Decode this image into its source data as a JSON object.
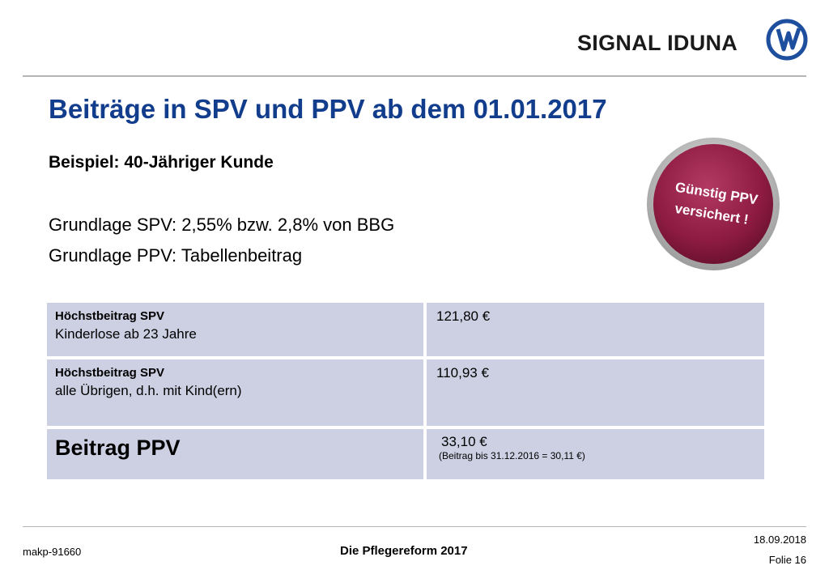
{
  "header": {
    "logo_text": "SIGNAL IDUNA",
    "logo_icon": "signal-iduna-mark"
  },
  "slide": {
    "title": "Beiträge in SPV und PPV ab dem 01.01.2017",
    "subtitle": "Beispiel: 40-Jähriger Kunde",
    "basis_spv": "Grundlage SPV: 2,55% bzw. 2,8% von BBG",
    "basis_ppv": "Grundlage PPV: Tabellenbeitrag"
  },
  "badge": {
    "line1": "Günstig PPV",
    "line2": "versichert !",
    "color": "#9a1f4a"
  },
  "table": {
    "rows": [
      {
        "label": "Höchstbeitrag SPV",
        "detail": "Kinderlose ab 23 Jahre",
        "amount": "121,80 €"
      },
      {
        "label": "Höchstbeitrag SPV",
        "detail": "alle Übrigen, d.h. mit Kind(ern)",
        "amount": "110,93 €"
      },
      {
        "label": "Beitrag PPV",
        "amount": "33,10 €",
        "note": "(Beitrag bis 31.12.2016 = 30,11 €)"
      }
    ],
    "cell_color": "#cdd0e2"
  },
  "footer": {
    "id": "makp-91660",
    "title": "Die Pflegereform 2017",
    "date": "18.09.2018",
    "slide": "Folie 16"
  },
  "colors": {
    "title": "#123d8c",
    "brand_blue": "#1d4f9e"
  }
}
